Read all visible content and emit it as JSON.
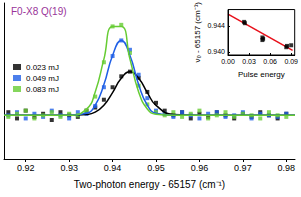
{
  "chart_data": [
    {
      "type": "scatter",
      "title": "F0-X8 Q(19)",
      "x_label": "Two-photon energy - 65157 (cm⁻¹)",
      "x": [
        0.916,
        0.918,
        0.92,
        0.922,
        0.924,
        0.926,
        0.928,
        0.93,
        0.932,
        0.934,
        0.936,
        0.938,
        0.94,
        0.942,
        0.944,
        0.946,
        0.948,
        0.95,
        0.952,
        0.954,
        0.956,
        0.958,
        0.96,
        0.962,
        0.964,
        0.966,
        0.968,
        0.97,
        0.972,
        0.974,
        0.976,
        0.978,
        0.98
      ],
      "series": [
        {
          "name": "0.023 mJ",
          "color": "#000000",
          "values": [
            0.3,
            0.26,
            0.31,
            0.27,
            0.29,
            0.25,
            0.3,
            0.28,
            0.27,
            0.31,
            0.33,
            0.38,
            0.46,
            0.53,
            0.56,
            0.52,
            0.43,
            0.36,
            0.31,
            0.28,
            0.3,
            0.26,
            0.29,
            0.27,
            0.3,
            0.28,
            0.26,
            0.29,
            0.27,
            0.3,
            0.28,
            0.26,
            0.29
          ],
          "fit": {
            "x": [
              0.915,
              0.925,
              0.93,
              0.934,
              0.936,
              0.938,
              0.94,
              0.942,
              0.944,
              0.946,
              0.948,
              0.95,
              0.954,
              0.96,
              0.97,
              0.982
            ],
            "values": [
              0.28,
              0.28,
              0.28,
              0.285,
              0.3,
              0.344,
              0.426,
              0.518,
              0.56,
              0.518,
              0.426,
              0.344,
              0.285,
              0.28,
              0.28,
              0.28
            ]
          }
        },
        {
          "name": "0.049 mJ",
          "color": "#1f5fe6",
          "values": [
            0.28,
            0.3,
            0.26,
            0.29,
            0.27,
            0.31,
            0.28,
            0.26,
            0.3,
            0.29,
            0.34,
            0.46,
            0.66,
            0.76,
            0.7,
            0.54,
            0.39,
            0.31,
            0.29,
            0.27,
            0.3,
            0.28,
            0.26,
            0.29,
            0.3,
            0.27,
            0.28,
            0.3,
            0.26,
            0.29,
            0.28,
            0.27,
            0.29
          ],
          "fit": {
            "x": [
              0.915,
              0.925,
              0.93,
              0.934,
              0.936,
              0.938,
              0.94,
              0.942,
              0.944,
              0.946,
              0.948,
              0.95,
              0.954,
              0.96,
              0.97,
              0.982
            ],
            "values": [
              0.28,
              0.28,
              0.28,
              0.293,
              0.345,
              0.477,
              0.664,
              0.76,
              0.664,
              0.477,
              0.345,
              0.293,
              0.28,
              0.28,
              0.28,
              0.28
            ]
          }
        },
        {
          "name": "0.083 mJ",
          "color": "#66cc33",
          "values": [
            0.27,
            0.29,
            0.31,
            0.26,
            0.28,
            0.3,
            0.27,
            0.29,
            0.28,
            0.31,
            0.4,
            0.62,
            0.85,
            0.86,
            0.68,
            0.47,
            0.35,
            0.3,
            0.28,
            0.3,
            0.27,
            0.29,
            0.31,
            0.26,
            0.28,
            0.3,
            0.27,
            0.29,
            0.28,
            0.26,
            0.3,
            0.28,
            0.27
          ],
          "fit": {
            "x": [
              0.915,
              0.925,
              0.93,
              0.934,
              0.936,
              0.938,
              0.94,
              0.942,
              0.944,
              0.946,
              0.948,
              0.95,
              0.954,
              0.96,
              0.97,
              0.982
            ],
            "values": [
              0.28,
              0.28,
              0.28,
              0.32,
              0.43,
              0.64,
              0.85,
              0.85,
              0.64,
              0.43,
              0.32,
              0.287,
              0.28,
              0.28,
              0.28,
              0.28
            ]
          }
        }
      ],
      "xlim": [
        0.915,
        0.982
      ],
      "xticks": [
        0.92,
        0.93,
        0.94,
        0.95,
        0.96,
        0.97,
        0.98
      ],
      "ylim": [
        0,
        1
      ],
      "yticks": [],
      "tick_labels": "x",
      "legend": "top-left",
      "marker": "square",
      "line_style": "solid",
      "grid": false
    },
    {
      "type": "scatter",
      "x_label": "Pulse energy",
      "y_label": "ν₀ - 65157 (cm⁻¹)",
      "x": [
        0.023,
        0.024,
        0.049,
        0.05,
        0.049,
        0.083,
        0.084,
        0.09
      ],
      "values": [
        0.9446,
        0.9444,
        0.9422,
        0.942,
        0.9418,
        0.9407,
        0.9409,
        0.941
      ],
      "color": "#000000",
      "marker": "square",
      "fit": {
        "x": [
          0,
          0.092
        ],
        "values": [
          0.9458,
          0.9402
        ],
        "color": "#e8101a"
      },
      "line_style": "solid",
      "xlim": [
        0,
        0.095
      ],
      "xticks": [
        {
          "value": 0,
          "label": "0.00"
        },
        0.03,
        0.06,
        0.09
      ],
      "ylim": [
        0.9395,
        0.9465
      ],
      "yticks": [
        {
          "value": 0.94,
          "label": "0.940"
        },
        {
          "value": 0.944,
          "label": "0.944"
        }
      ],
      "grid": false
    }
  ]
}
